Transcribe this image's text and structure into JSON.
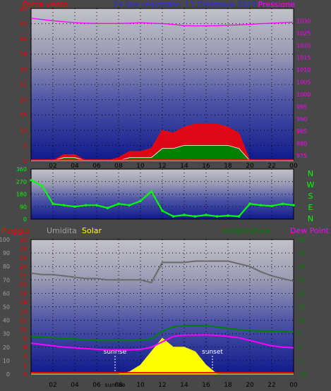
{
  "header": {
    "left_label": "Forza vento",
    "center_label": "24 Ore registrate: 13 Dicembre 2019",
    "right_label": "Pressione"
  },
  "panel3_labels": {
    "rain": "Pioggia",
    "humidity": "Umidita",
    "solar": "Solar",
    "temperature": "Temperatura",
    "dew_point": "Dew Point"
  },
  "compass": [
    "N",
    "W",
    "S",
    "E",
    "N"
  ],
  "sun": {
    "sunrise_label": "sunrise",
    "sunset_label": "sunset",
    "sunrise_axis_label": "sunrise"
  },
  "colors": {
    "wind": "#ff0000",
    "wind_gust": "#ff0000",
    "wind_avg": "#008000",
    "pressure": "#ff00ff",
    "direction": "#00ff00",
    "humidity": "#6a6a6a",
    "solar": "#ffff00",
    "temperature": "#008000",
    "dew_point": "#ff00ff",
    "rain": "#ff0000"
  },
  "chart_data": [
    {
      "type": "line",
      "title": "24 Ore registrate: 13 Dicembre 2019",
      "x_ticks": [
        "02",
        "04",
        "06",
        "08",
        "10",
        "12",
        "14",
        "16",
        "18",
        "20",
        "22",
        "00"
      ],
      "y_left": {
        "label": "Forza vento",
        "ticks": [
          0,
          5,
          10,
          15,
          20,
          25,
          30,
          35,
          40,
          45,
          50
        ],
        "range": [
          0,
          50
        ]
      },
      "y_right": {
        "label": "Pressione",
        "ticks": [
          975,
          980,
          985,
          990,
          995,
          1000,
          1005,
          1010,
          1015,
          1020,
          1025,
          1030
        ],
        "range": [
          973,
          1035
        ]
      },
      "x_hours": [
        0,
        1,
        2,
        3,
        4,
        5,
        6,
        7,
        8,
        9,
        10,
        11,
        12,
        13,
        14,
        15,
        16,
        17,
        18,
        19,
        20,
        21,
        22,
        23,
        24
      ],
      "series": [
        {
          "name": "Pressione",
          "axis": "right",
          "values": [
            1031,
            1030.5,
            1030,
            1029.6,
            1029.2,
            1029,
            1028.9,
            1028.9,
            1028.9,
            1029,
            1029.2,
            1029,
            1028.8,
            1028.5,
            1028,
            1027.9,
            1027.9,
            1028,
            1028.2,
            1028.3,
            1028.5,
            1028.8,
            1029,
            1029.2,
            1029.4
          ]
        },
        {
          "name": "Wind gust",
          "axis": "left",
          "values": [
            0,
            0,
            0,
            2,
            2,
            0,
            0,
            0,
            1,
            3,
            3,
            4,
            10,
            9,
            11,
            12,
            12,
            12,
            11,
            9,
            0,
            0,
            0,
            0,
            0
          ]
        },
        {
          "name": "Wind avg",
          "axis": "left",
          "values": [
            0,
            0,
            0,
            1,
            1,
            0,
            0,
            0,
            0,
            1,
            1,
            1,
            4,
            4,
            5,
            5,
            5,
            5,
            5,
            4,
            0,
            0,
            0,
            0,
            0
          ]
        }
      ]
    },
    {
      "type": "scatter",
      "title": "",
      "x_ticks": [
        "02",
        "04",
        "06",
        "08",
        "10",
        "12",
        "14",
        "16",
        "18",
        "20",
        "22",
        "00"
      ],
      "y_left": {
        "label": "",
        "ticks": [
          0,
          90,
          180,
          270,
          360
        ],
        "range": [
          0,
          360
        ]
      },
      "x_hours": [
        0,
        1,
        2,
        3,
        4,
        5,
        6,
        7,
        8,
        9,
        10,
        11,
        12,
        13,
        14,
        15,
        16,
        17,
        18,
        19,
        20,
        21,
        22,
        23,
        24
      ],
      "series": [
        {
          "name": "Direzione vento",
          "values": [
            280,
            240,
            110,
            100,
            90,
            100,
            100,
            80,
            110,
            100,
            130,
            200,
            60,
            20,
            30,
            20,
            30,
            20,
            25,
            20,
            110,
            100,
            95,
            110,
            100
          ]
        }
      ]
    },
    {
      "type": "line",
      "title": "",
      "x_ticks": [
        "02",
        "04",
        "06",
        "08",
        "10",
        "12",
        "14",
        "16",
        "18",
        "20",
        "22",
        "00"
      ],
      "y_left_outer": {
        "label": "Umidita",
        "ticks": [
          0,
          10,
          20,
          30,
          40,
          50,
          60,
          70,
          80,
          90,
          100
        ],
        "range": [
          0,
          100
        ]
      },
      "y_left_inner": {
        "label": "Pioggia",
        "ticks": [
          0,
          2,
          4,
          6,
          8,
          10,
          12,
          14,
          16,
          18,
          20,
          22,
          24,
          26,
          28,
          30
        ],
        "range": [
          0,
          30
        ]
      },
      "y_right": {
        "label": "Temperatura",
        "ticks": [
          -10,
          -5,
          0,
          5,
          10,
          15,
          20,
          25,
          30,
          35,
          40
        ],
        "range": [
          -10,
          40
        ]
      },
      "x_hours": [
        0,
        1,
        2,
        3,
        4,
        5,
        6,
        7,
        8,
        9,
        10,
        11,
        12,
        13,
        14,
        15,
        16,
        17,
        18,
        19,
        20,
        21,
        22,
        23,
        24
      ],
      "series": [
        {
          "name": "Umidita",
          "scale": "outer",
          "values": [
            75,
            74,
            74,
            73,
            72,
            71,
            71,
            70,
            70,
            70,
            70,
            68,
            83,
            83,
            83,
            84,
            84,
            84,
            84,
            82,
            80,
            76,
            73,
            71,
            69
          ]
        },
        {
          "name": "Temperatura",
          "scale": "right",
          "values": [
            4,
            3.8,
            3.5,
            3.2,
            3,
            2.8,
            2.5,
            2.5,
            2.5,
            2.5,
            2.6,
            3,
            6,
            7.5,
            8,
            8,
            8,
            7.5,
            7,
            6.5,
            6.2,
            6,
            6,
            5.8,
            5.6
          ]
        },
        {
          "name": "Dew Point",
          "scale": "right",
          "values": [
            1.5,
            1,
            0.5,
            0,
            -0.2,
            -0.5,
            -0.8,
            -1,
            -1,
            -1,
            -0.8,
            0,
            2,
            4,
            4.5,
            4.5,
            4.6,
            4.4,
            4,
            3.5,
            2.5,
            1.5,
            0.5,
            0,
            -0.2
          ]
        },
        {
          "name": "Solar",
          "scale": "inner",
          "values": [
            0,
            0,
            0,
            0,
            0,
            0,
            0,
            0,
            0,
            0.5,
            2,
            5,
            8,
            6,
            6,
            5,
            2,
            0,
            0,
            0,
            0,
            0,
            0,
            0,
            0
          ]
        },
        {
          "name": "Pioggia",
          "scale": "inner",
          "values": [
            0.3,
            0.3,
            0.3,
            0.3,
            0.3,
            0.3,
            0.3,
            0.3,
            0.3,
            0.3,
            0.3,
            0.3,
            0.3,
            0.3,
            0.3,
            0.3,
            0.3,
            0.3,
            0.3,
            0.3,
            0.3,
            0.3,
            0.3,
            0.3,
            0.3
          ]
        }
      ]
    }
  ]
}
